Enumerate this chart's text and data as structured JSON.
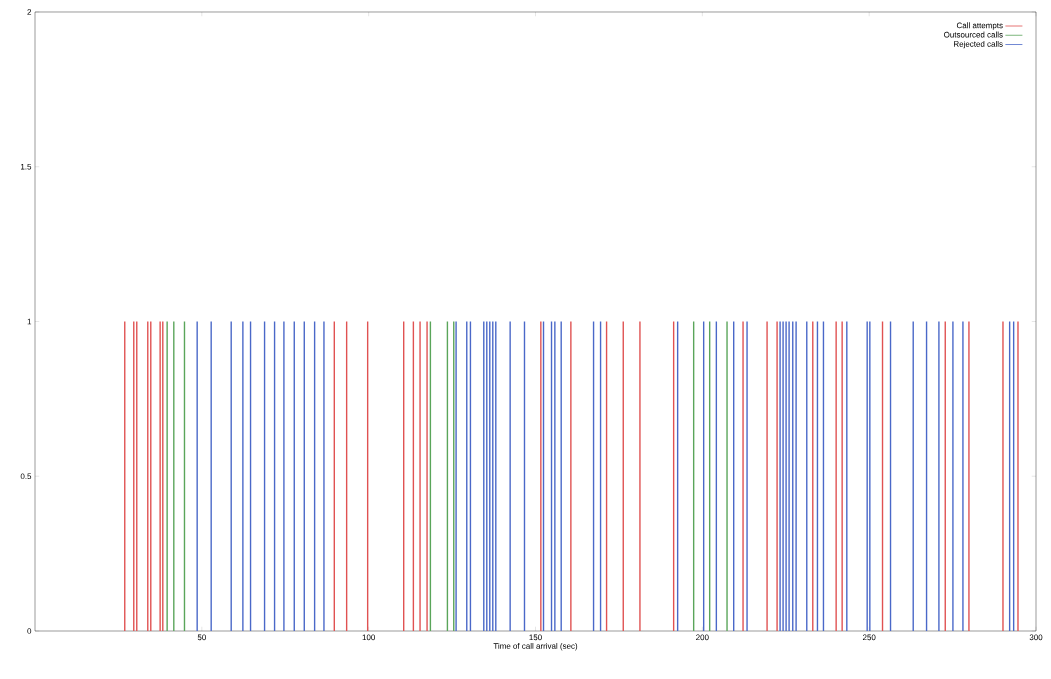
{
  "chart_data": {
    "type": "bar",
    "xlabel": "Time of call arrival (sec)",
    "xlim": [
      0,
      300
    ],
    "ylim": [
      0,
      2
    ],
    "xticks": [
      50,
      100,
      150,
      200,
      250,
      300
    ],
    "yticks": [
      0,
      0.5,
      1,
      1.5,
      2
    ],
    "grid": false,
    "legend": "top right",
    "series": [
      {
        "name": "Call attempts",
        "color": "#e05252",
        "x": [
          26.9,
          29.6,
          30.5,
          33.8,
          34.7,
          37.5,
          38.3,
          89.7,
          93.4,
          99.7,
          110.5,
          113.4,
          115.4,
          117.5,
          151.6,
          160.6,
          171.3,
          176.3,
          181.3,
          191.4,
          212.2,
          219.4,
          222.4,
          233.1,
          240.1,
          241.9,
          254.0,
          272.8,
          279.9,
          290.1,
          294.6
        ],
        "values": [
          1,
          1,
          1,
          1,
          1,
          1,
          1,
          1,
          1,
          1,
          1,
          1,
          1,
          1,
          1,
          1,
          1,
          1,
          1,
          1,
          1,
          1,
          1,
          1,
          1,
          1,
          1,
          1,
          1,
          1,
          1
        ]
      },
      {
        "name": "Outsourced calls",
        "color": "#5aa55a",
        "x": [
          39.6,
          41.6,
          44.8,
          118.5,
          123.6,
          125.5,
          197.4,
          202.2,
          207.4
        ],
        "values": [
          1,
          1,
          1,
          1,
          1,
          1,
          1,
          1,
          1
        ]
      },
      {
        "name": "Rejected calls",
        "color": "#4a68c8",
        "x": [
          48.6,
          52.8,
          58.8,
          62.3,
          64.6,
          68.8,
          71.8,
          74.6,
          77.7,
          80.7,
          83.8,
          86.6,
          126.2,
          129.4,
          130.5,
          134.5,
          135.4,
          136.3,
          137.2,
          138.1,
          142.4,
          146.7,
          152.4,
          154.8,
          155.8,
          157.7,
          167.4,
          169.5,
          192.6,
          200.4,
          204.2,
          209.4,
          213.4,
          223.3,
          224.2,
          225.1,
          226.0,
          227.1,
          228.1,
          231.3,
          234.5,
          236.3,
          243.3,
          249.4,
          250.2,
          256.4,
          263.2,
          267.2,
          270.9,
          275.1,
          278.1,
          292.1,
          293.3
        ],
        "values": [
          1,
          1,
          1,
          1,
          1,
          1,
          1,
          1,
          1,
          1,
          1,
          1,
          1,
          1,
          1,
          1,
          1,
          1,
          1,
          1,
          1,
          1,
          1,
          1,
          1,
          1,
          1,
          1,
          1,
          1,
          1,
          1,
          1,
          1,
          1,
          1,
          1,
          1,
          1,
          1,
          1,
          1,
          1,
          1,
          1,
          1,
          1,
          1,
          1,
          1,
          1,
          1,
          1
        ]
      }
    ]
  }
}
